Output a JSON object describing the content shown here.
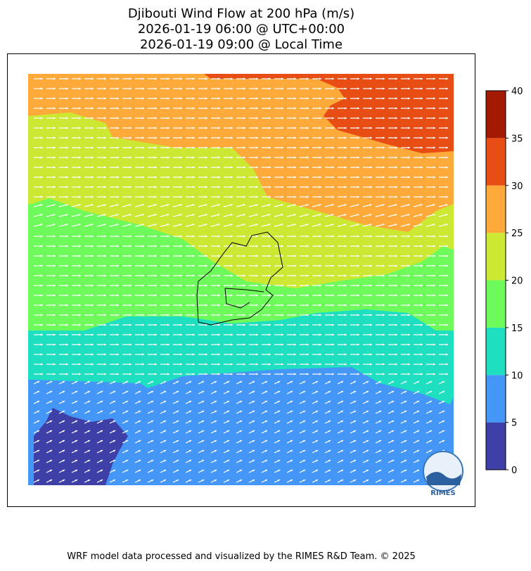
{
  "title": [
    "Djibouti Wind Flow at 200 hPa (m/s)",
    "2026-01-19 06:00 @ UTC+00:00",
    "2026-01-19 09:00 @ Local Time"
  ],
  "colorbar": {
    "levels": [
      0,
      5,
      10,
      15,
      20,
      25,
      30,
      35,
      40
    ],
    "colors": [
      "#3f3fa8",
      "#4496f7",
      "#1ee0c0",
      "#6efa5a",
      "#cde832",
      "#fdaa3a",
      "#e84e14",
      "#a31a00"
    ]
  },
  "logo": "RIMES",
  "footer": "WRF model data processed and visualized by the RIMES R&D Team. © 2025"
}
